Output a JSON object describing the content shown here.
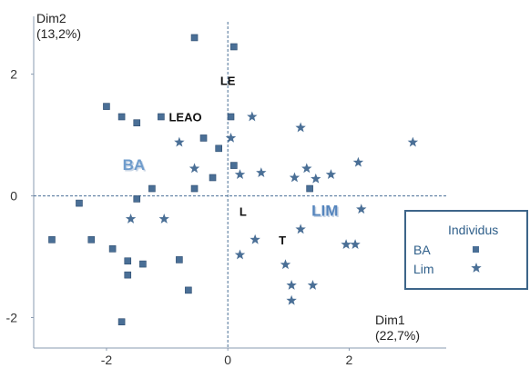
{
  "chart_data": {
    "type": "scatter",
    "xlabel": "Dim1",
    "xlabel_sub": "(22,7%)",
    "ylabel": "Dim2",
    "ylabel_sub": "(13,2%)",
    "xlim": [
      -3.2,
      3.6
    ],
    "ylim": [
      -2.5,
      2.95
    ],
    "x_ticks": [
      -2,
      0,
      2
    ],
    "y_ticks": [
      -2,
      0,
      2
    ],
    "x_tick_labels": [
      "-2",
      "0",
      "2"
    ],
    "y_tick_labels": [
      "-2",
      "0",
      "2"
    ],
    "grid": false,
    "reference_lines": "dashed lines at x=0 and y=0",
    "legend": {
      "title": "Individus",
      "position": "right",
      "entries": [
        {
          "label": "BA",
          "marker": "square",
          "color": "#4a6f96"
        },
        {
          "label": "Lim",
          "marker": "star",
          "color": "#4a6f96"
        }
      ]
    },
    "series": [
      {
        "name": "BA",
        "marker": "square",
        "color": "#4a6f96",
        "points": [
          {
            "x": -0.55,
            "y": 2.6
          },
          {
            "x": 0.1,
            "y": 2.45
          },
          {
            "x": -2.0,
            "y": 1.47
          },
          {
            "x": -1.75,
            "y": 1.3
          },
          {
            "x": -1.5,
            "y": 1.2
          },
          {
            "x": -1.1,
            "y": 1.3
          },
          {
            "x": 0.05,
            "y": 1.3
          },
          {
            "x": -0.4,
            "y": 0.95
          },
          {
            "x": -0.15,
            "y": 0.78
          },
          {
            "x": 0.1,
            "y": 0.5
          },
          {
            "x": -0.25,
            "y": 0.3
          },
          {
            "x": -0.55,
            "y": 0.12
          },
          {
            "x": -1.25,
            "y": 0.12
          },
          {
            "x": -1.5,
            "y": -0.05
          },
          {
            "x": 1.35,
            "y": 0.12
          },
          {
            "x": -2.45,
            "y": -0.12
          },
          {
            "x": -2.9,
            "y": -0.72
          },
          {
            "x": -2.25,
            "y": -0.72
          },
          {
            "x": -1.9,
            "y": -0.87
          },
          {
            "x": -1.65,
            "y": -1.07
          },
          {
            "x": -0.8,
            "y": -1.05
          },
          {
            "x": -1.4,
            "y": -1.12
          },
          {
            "x": -1.65,
            "y": -1.3
          },
          {
            "x": -0.65,
            "y": -1.55
          },
          {
            "x": -1.75,
            "y": -2.07
          }
        ]
      },
      {
        "name": "Lim",
        "marker": "star",
        "color": "#4a6f96",
        "points": [
          {
            "x": 0.4,
            "y": 1.3
          },
          {
            "x": 1.2,
            "y": 1.12
          },
          {
            "x": 3.05,
            "y": 0.88
          },
          {
            "x": 0.05,
            "y": 0.95
          },
          {
            "x": -0.8,
            "y": 0.88
          },
          {
            "x": -0.55,
            "y": 0.45
          },
          {
            "x": 1.3,
            "y": 0.45
          },
          {
            "x": 2.15,
            "y": 0.55
          },
          {
            "x": 0.2,
            "y": 0.35
          },
          {
            "x": 0.55,
            "y": 0.38
          },
          {
            "x": 1.1,
            "y": 0.3
          },
          {
            "x": 1.45,
            "y": 0.28
          },
          {
            "x": 1.7,
            "y": 0.35
          },
          {
            "x": 2.2,
            "y": -0.22
          },
          {
            "x": -1.6,
            "y": -0.38
          },
          {
            "x": -1.05,
            "y": -0.38
          },
          {
            "x": 1.2,
            "y": -0.55
          },
          {
            "x": 0.45,
            "y": -0.72
          },
          {
            "x": 1.95,
            "y": -0.8
          },
          {
            "x": 2.1,
            "y": -0.8
          },
          {
            "x": 0.2,
            "y": -0.97
          },
          {
            "x": 0.95,
            "y": -1.13
          },
          {
            "x": 1.05,
            "y": -1.47
          },
          {
            "x": 1.4,
            "y": -1.47
          },
          {
            "x": 1.05,
            "y": -1.72
          }
        ]
      }
    ],
    "annotations": [
      {
        "text": "LE",
        "x": 0.0,
        "y": 1.9,
        "style": "bold",
        "color": "#111111"
      },
      {
        "text": "LEAO",
        "x": -0.7,
        "y": 1.3,
        "style": "bold",
        "color": "#111111"
      },
      {
        "text": "BA",
        "x": -1.55,
        "y": 0.5,
        "style": "bold-shadow",
        "color": "#6f9ccc"
      },
      {
        "text": "L",
        "x": 0.25,
        "y": -0.25,
        "style": "bold",
        "color": "#111111"
      },
      {
        "text": "LIM",
        "x": 1.6,
        "y": -0.25,
        "style": "bold-shadow",
        "color": "#5585bd"
      },
      {
        "text": "T",
        "x": 0.9,
        "y": -0.72,
        "style": "bold",
        "color": "#111111"
      }
    ]
  }
}
